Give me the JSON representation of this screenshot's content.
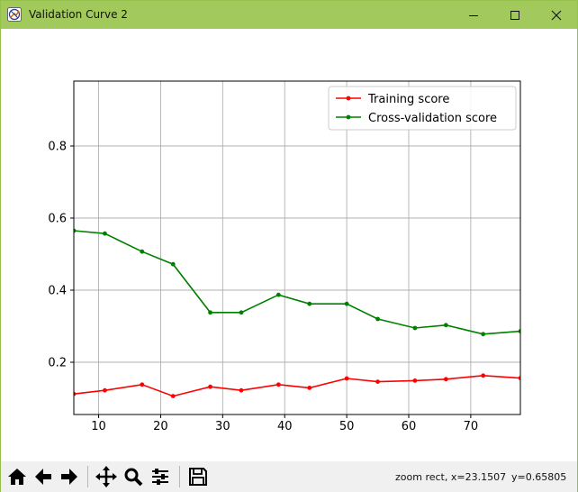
{
  "window": {
    "title": "Validation Curve 2",
    "icons": [
      "app-icon",
      "minimize-icon",
      "maximize-icon",
      "close-icon"
    ]
  },
  "toolbar": {
    "buttons": [
      "home-icon",
      "back-icon",
      "forward-icon",
      "pan-icon",
      "zoom-icon",
      "configure-subplots-icon",
      "save-icon"
    ],
    "status_mode": "zoom rect, x=23.1507",
    "status_y": "y=0.65805"
  },
  "colors": {
    "training": "#ff0000",
    "cv": "#008000",
    "grid": "#b0b0b0",
    "titlebar": "#a2c95b"
  },
  "chart_data": {
    "type": "line",
    "title": "",
    "xlabel": "",
    "ylabel": "",
    "xlim": [
      6,
      78
    ],
    "ylim": [
      0.055,
      0.98
    ],
    "xticks": [
      10,
      20,
      30,
      40,
      50,
      60,
      70
    ],
    "yticks": [
      0.2,
      0.4,
      0.6,
      0.8
    ],
    "xtick_labels": [
      "10",
      "20",
      "30",
      "40",
      "50",
      "60",
      "70"
    ],
    "ytick_labels": [
      "0.2",
      "0.4",
      "0.6",
      "0.8"
    ],
    "grid": true,
    "legend_position": "top-right",
    "x": [
      6,
      11,
      17,
      22,
      28,
      33,
      39,
      44,
      50,
      55,
      61,
      66,
      72,
      78
    ],
    "series": [
      {
        "name": "Training score",
        "color": "#ff0000",
        "values": [
          0.112,
          0.122,
          0.138,
          0.106,
          0.132,
          0.122,
          0.138,
          0.129,
          0.155,
          0.146,
          0.149,
          0.153,
          0.163,
          0.156
        ]
      },
      {
        "name": "Cross-validation score",
        "color": "#008000",
        "values": [
          0.565,
          0.557,
          0.507,
          0.472,
          0.338,
          0.338,
          0.387,
          0.362,
          0.362,
          0.32,
          0.295,
          0.303,
          0.278,
          0.286
        ]
      }
    ]
  }
}
